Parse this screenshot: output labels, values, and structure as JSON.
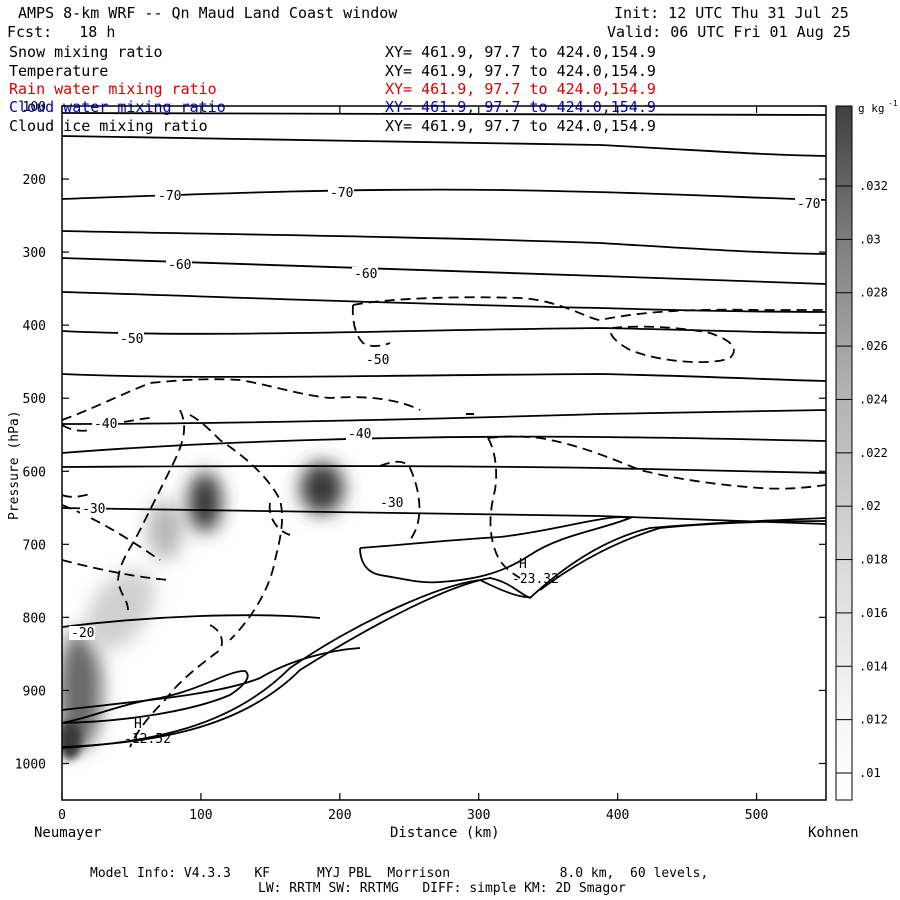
{
  "header": {
    "title": "AMPS 8-km WRF -- Qn Maud Land Coast window",
    "init": "Init: 12 UTC Thu 31 Jul 25",
    "fcst": "Fcst:   18 h",
    "valid": "Valid: 06 UTC Fri 01 Aug 25"
  },
  "fields": [
    {
      "label": "Snow mixing ratio",
      "xy": "XY= 461.9, 97.7 to 424.0,154.9",
      "color": "#000000"
    },
    {
      "label": "Temperature",
      "xy": "XY= 461.9, 97.7 to 424.0,154.9",
      "color": "#000000"
    },
    {
      "label": "Rain water mixing ratio",
      "xy": "XY= 461.9, 97.7 to 424.0,154.9",
      "color": "#dd0000"
    },
    {
      "label": "Cloud water mixing ratio",
      "xy": "XY= 461.9, 97.7 to 424.0,154.9",
      "color": "#0000cc"
    },
    {
      "label": "Cloud ice mixing ratio",
      "xy": "XY= 461.9, 97.7 to 424.0,154.9",
      "color": "#000000"
    }
  ],
  "footer": {
    "line1": "Model Info: V4.3.3   KF      MYJ PBL  Morrison              8.0 km,  60 levels,",
    "line2": "LW: RRTM SW: RRTMG   DIFF: simple KM: 2D Smagor"
  },
  "chart_data": {
    "type": "cross-section",
    "xlabel": "Distance (km)",
    "ylabel": "Pressure (hPa)",
    "x_left_label": "Neumayer",
    "x_right_label": "Kohnen",
    "xlim": [
      0,
      550
    ],
    "ylim": [
      1050,
      100
    ],
    "x_ticks": [
      0,
      100,
      200,
      300,
      400,
      500
    ],
    "y_ticks": [
      100,
      200,
      300,
      400,
      500,
      600,
      700,
      800,
      900,
      1000
    ],
    "colorbar": {
      "unit": "g kg",
      "unit_exp": "-1",
      "ticks": [
        ".032",
        ".03",
        ".028",
        ".026",
        ".024",
        ".022",
        ".02",
        ".018",
        ".016",
        ".014",
        ".012",
        ".01"
      ]
    },
    "temperature_labels": [
      "-70",
      "-70",
      "-70",
      "-60",
      "-60",
      "-50",
      "-50",
      "-40",
      "-40",
      "-30",
      "-30",
      "-20"
    ],
    "annotations": {
      "high_marker": "H",
      "high_value": "-23.32",
      "low_marker": "H",
      "low_value": "-12.52"
    }
  }
}
